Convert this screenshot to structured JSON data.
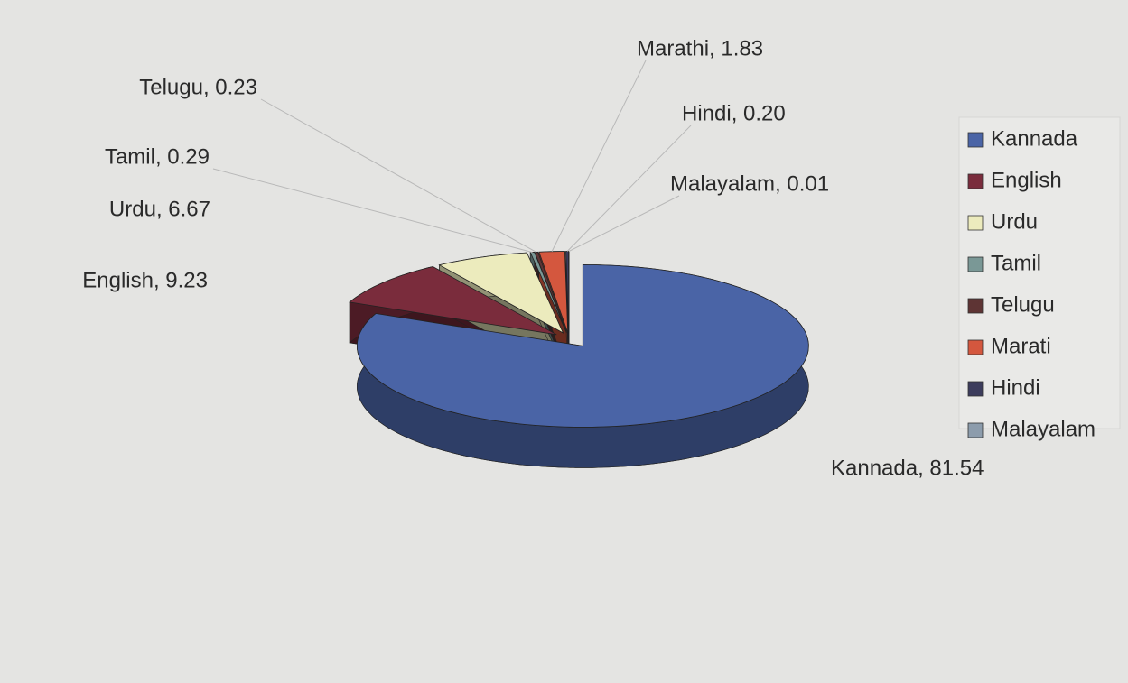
{
  "chart_data": {
    "type": "pie3d",
    "categories": [
      "Kannada",
      "English",
      "Urdu",
      "Tamil",
      "Telugu",
      "Marati",
      "Hindi",
      "Malayalam"
    ],
    "values": [
      81.54,
      9.23,
      6.67,
      0.29,
      0.23,
      1.83,
      0.2,
      0.01
    ],
    "value_labels": [
      "Kannada, 81.54",
      "English, 9.23",
      "Urdu, 6.67",
      "Tamil, 0.29",
      "Telugu, 0.23",
      "Marathi, 1.83",
      "Hindi, 0.20",
      "Malayalam, 0.01"
    ],
    "colors": [
      "#4a64a6",
      "#7a2c3c",
      "#ecebbd",
      "#7a9896",
      "#5e3434",
      "#d4573e",
      "#3c3c5c",
      "#8c9cac"
    ],
    "legend": "right"
  }
}
